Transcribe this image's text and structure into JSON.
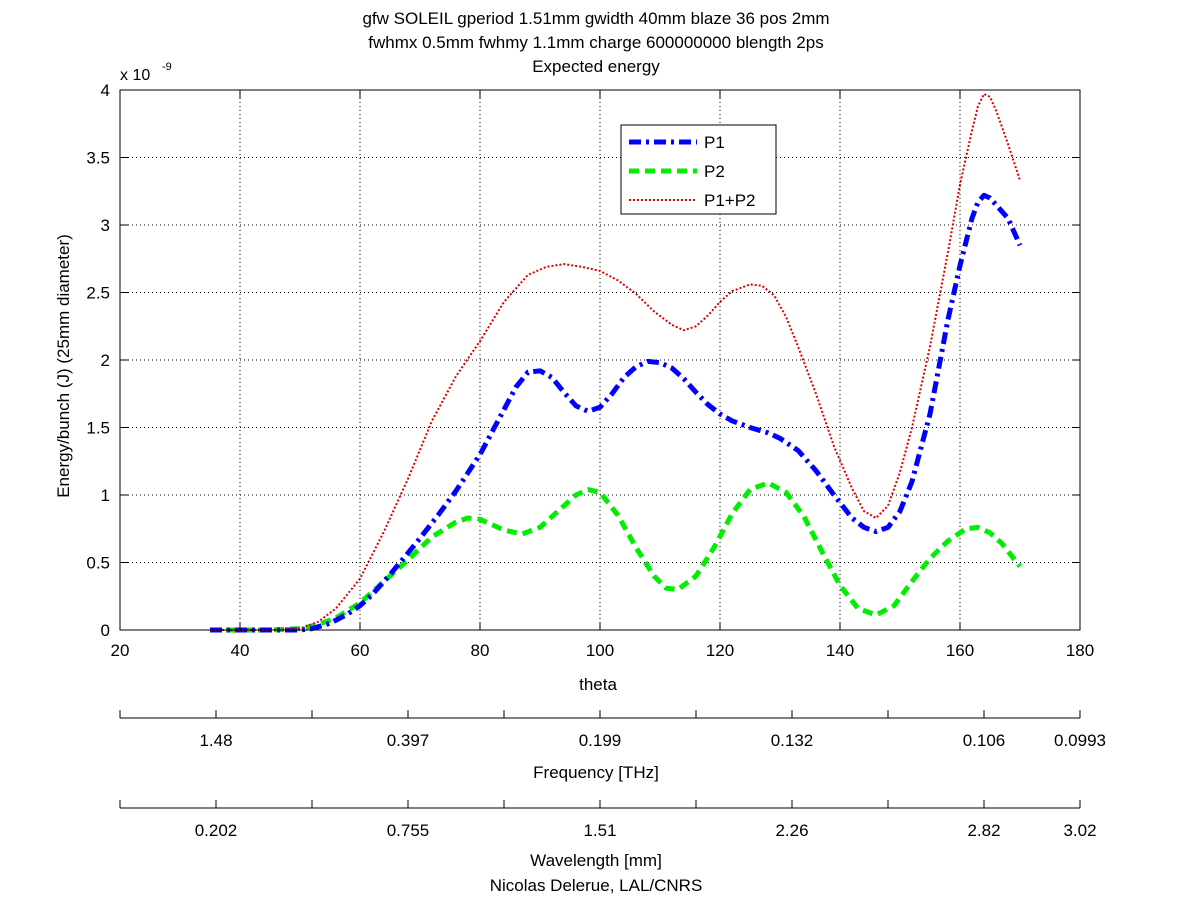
{
  "title_lines": [
    "gfw SOLEIL gperiod 1.51mm gwidth 40mm blaze 36 pos 2mm",
    "fwhmx 0.5mm fwhmy 1.1mm charge 600000000 blength 2ps",
    "Expected energy"
  ],
  "colors": {
    "p1": "#0000ff",
    "p2": "#00ee00",
    "sum": "#dd0000",
    "axis": "#000000",
    "grid": "#000000"
  },
  "chart_data": {
    "type": "line",
    "title": "gfw SOLEIL gperiod 1.51mm gwidth 40mm blaze 36 pos 2mm / fwhmx 0.5mm fwhmy 1.1mm charge 600000000 blength 2ps / Expected energy",
    "xlabel": "theta",
    "ylabel": "Energy/bunch (J) (25mm diameter)",
    "y_exponent_label": "x 10",
    "y_exponent_power": "-9",
    "xlim": [
      20,
      180
    ],
    "ylim": [
      0,
      4
    ],
    "y_scale_factor": 1e-09,
    "x_ticks": [
      20,
      40,
      60,
      80,
      100,
      120,
      140,
      160,
      180
    ],
    "x_tick_labels": [
      "20",
      "40",
      "60",
      "80",
      "100",
      "120",
      "140",
      "160",
      "180"
    ],
    "y_ticks": [
      0,
      0.5,
      1,
      1.5,
      2,
      2.5,
      3,
      3.5,
      4
    ],
    "y_tick_labels": [
      "0",
      "0.5",
      "1",
      "1.5",
      "2",
      "2.5",
      "3",
      "3.5",
      "4"
    ],
    "grid": true,
    "legend_position": "top-center",
    "series": [
      {
        "name": "P1",
        "style": "dash-dot",
        "x": [
          35,
          40,
          45,
          50,
          52,
          55,
          58,
          60,
          62,
          65,
          68,
          70,
          73,
          76,
          80,
          83,
          86,
          88,
          90,
          92,
          94,
          96,
          98,
          100,
          102,
          104,
          106,
          108,
          110,
          112,
          114,
          116,
          118,
          120,
          122,
          125,
          128,
          130,
          133,
          136,
          139,
          142,
          144,
          146,
          148,
          150,
          152,
          155,
          158,
          160,
          162,
          163,
          164,
          165,
          166,
          168,
          170
        ],
        "y": [
          0,
          0,
          0,
          0,
          0.01,
          0.05,
          0.12,
          0.18,
          0.26,
          0.41,
          0.57,
          0.68,
          0.85,
          1.03,
          1.3,
          1.55,
          1.8,
          1.91,
          1.92,
          1.87,
          1.76,
          1.66,
          1.62,
          1.65,
          1.75,
          1.87,
          1.95,
          1.99,
          1.98,
          1.94,
          1.86,
          1.76,
          1.67,
          1.6,
          1.55,
          1.5,
          1.46,
          1.42,
          1.33,
          1.18,
          1.0,
          0.83,
          0.76,
          0.73,
          0.76,
          0.88,
          1.1,
          1.6,
          2.3,
          2.7,
          3.05,
          3.17,
          3.22,
          3.2,
          3.15,
          3.05,
          2.85
        ]
      },
      {
        "name": "P2",
        "style": "dashed",
        "x": [
          35,
          40,
          45,
          50,
          53,
          56,
          60,
          64,
          68,
          72,
          76,
          78,
          80,
          84,
          87,
          90,
          93,
          96,
          98,
          100,
          103,
          106,
          109,
          111,
          113,
          116,
          119,
          122,
          125,
          128,
          131,
          134,
          137,
          140,
          143,
          146,
          149,
          152,
          155,
          158,
          161,
          163,
          165,
          167,
          170
        ],
        "y": [
          0,
          0,
          0,
          0.01,
          0.04,
          0.09,
          0.2,
          0.36,
          0.52,
          0.69,
          0.8,
          0.83,
          0.82,
          0.74,
          0.71,
          0.76,
          0.88,
          1.0,
          1.04,
          1.02,
          0.85,
          0.61,
          0.4,
          0.31,
          0.3,
          0.4,
          0.61,
          0.86,
          1.04,
          1.09,
          1.02,
          0.84,
          0.58,
          0.33,
          0.16,
          0.11,
          0.18,
          0.36,
          0.53,
          0.66,
          0.75,
          0.76,
          0.72,
          0.64,
          0.47
        ]
      },
      {
        "name": "P1+P2",
        "style": "dotted",
        "x": [
          35,
          40,
          45,
          50,
          53,
          56,
          60,
          64,
          68,
          72,
          76,
          80,
          84,
          88,
          91,
          94,
          97,
          100,
          103,
          106,
          109,
          112,
          114,
          116,
          118,
          120,
          122,
          125,
          127,
          129,
          131,
          133,
          136,
          139,
          142,
          144,
          146,
          148,
          150,
          152,
          155,
          158,
          160,
          162,
          163,
          164,
          165,
          166,
          168,
          170
        ],
        "y": [
          0,
          0,
          0,
          0.01,
          0.06,
          0.16,
          0.38,
          0.73,
          1.12,
          1.55,
          1.88,
          2.14,
          2.43,
          2.63,
          2.69,
          2.71,
          2.69,
          2.66,
          2.59,
          2.49,
          2.36,
          2.26,
          2.22,
          2.25,
          2.33,
          2.43,
          2.51,
          2.56,
          2.55,
          2.48,
          2.32,
          2.1,
          1.75,
          1.36,
          1.05,
          0.88,
          0.83,
          0.92,
          1.17,
          1.5,
          2.1,
          2.8,
          3.3,
          3.7,
          3.88,
          3.97,
          3.95,
          3.85,
          3.6,
          3.33
        ]
      }
    ],
    "secondary_axes": [
      {
        "label": "Frequency [THz]",
        "tick_labels": [
          "1.48",
          "0.397",
          "0.199",
          "0.132",
          "0.106",
          "0.0993"
        ]
      },
      {
        "label": "Wavelength [mm]",
        "tick_labels": [
          "0.202",
          "0.755",
          "1.51",
          "2.26",
          "2.82",
          "3.02"
        ]
      }
    ]
  },
  "footer_credit": "Nicolas Delerue, LAL/CNRS"
}
